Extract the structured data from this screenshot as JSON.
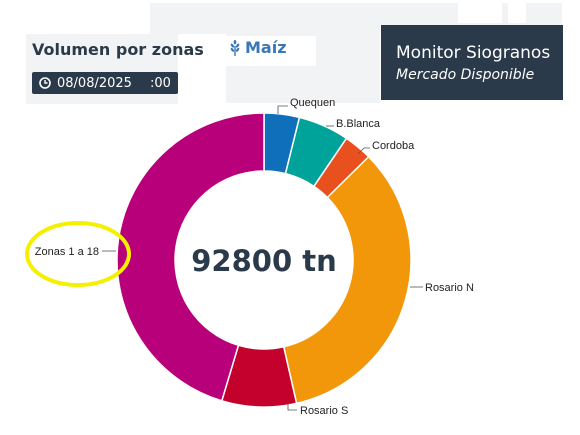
{
  "header": {
    "title": "Volumen por zonas",
    "commodity": "Maíz",
    "date_badge": "08/08/2025",
    "time_badge": ":00"
  },
  "brand": {
    "title": "Monitor Siogranos",
    "subtitle": "Mercado Disponible"
  },
  "chart_data": {
    "type": "pie",
    "donut": true,
    "center_label": "92800 tn",
    "total": 92800,
    "unit": "tn",
    "categories": [
      "Quequen",
      "B.Blanca",
      "Cordoba",
      "Rosario N",
      "Rosario S",
      "Zonas 1 a 18"
    ],
    "values": [
      3600,
      5200,
      2900,
      31400,
      7600,
      42100
    ],
    "colors": [
      "#0f6fba",
      "#00a39a",
      "#e8511d",
      "#f2960a",
      "#c4002c",
      "#b8007a"
    ],
    "legend": "labels on slices",
    "highlighted_label": "Zonas 1 a 18",
    "highlight_color": "#f5f000"
  }
}
